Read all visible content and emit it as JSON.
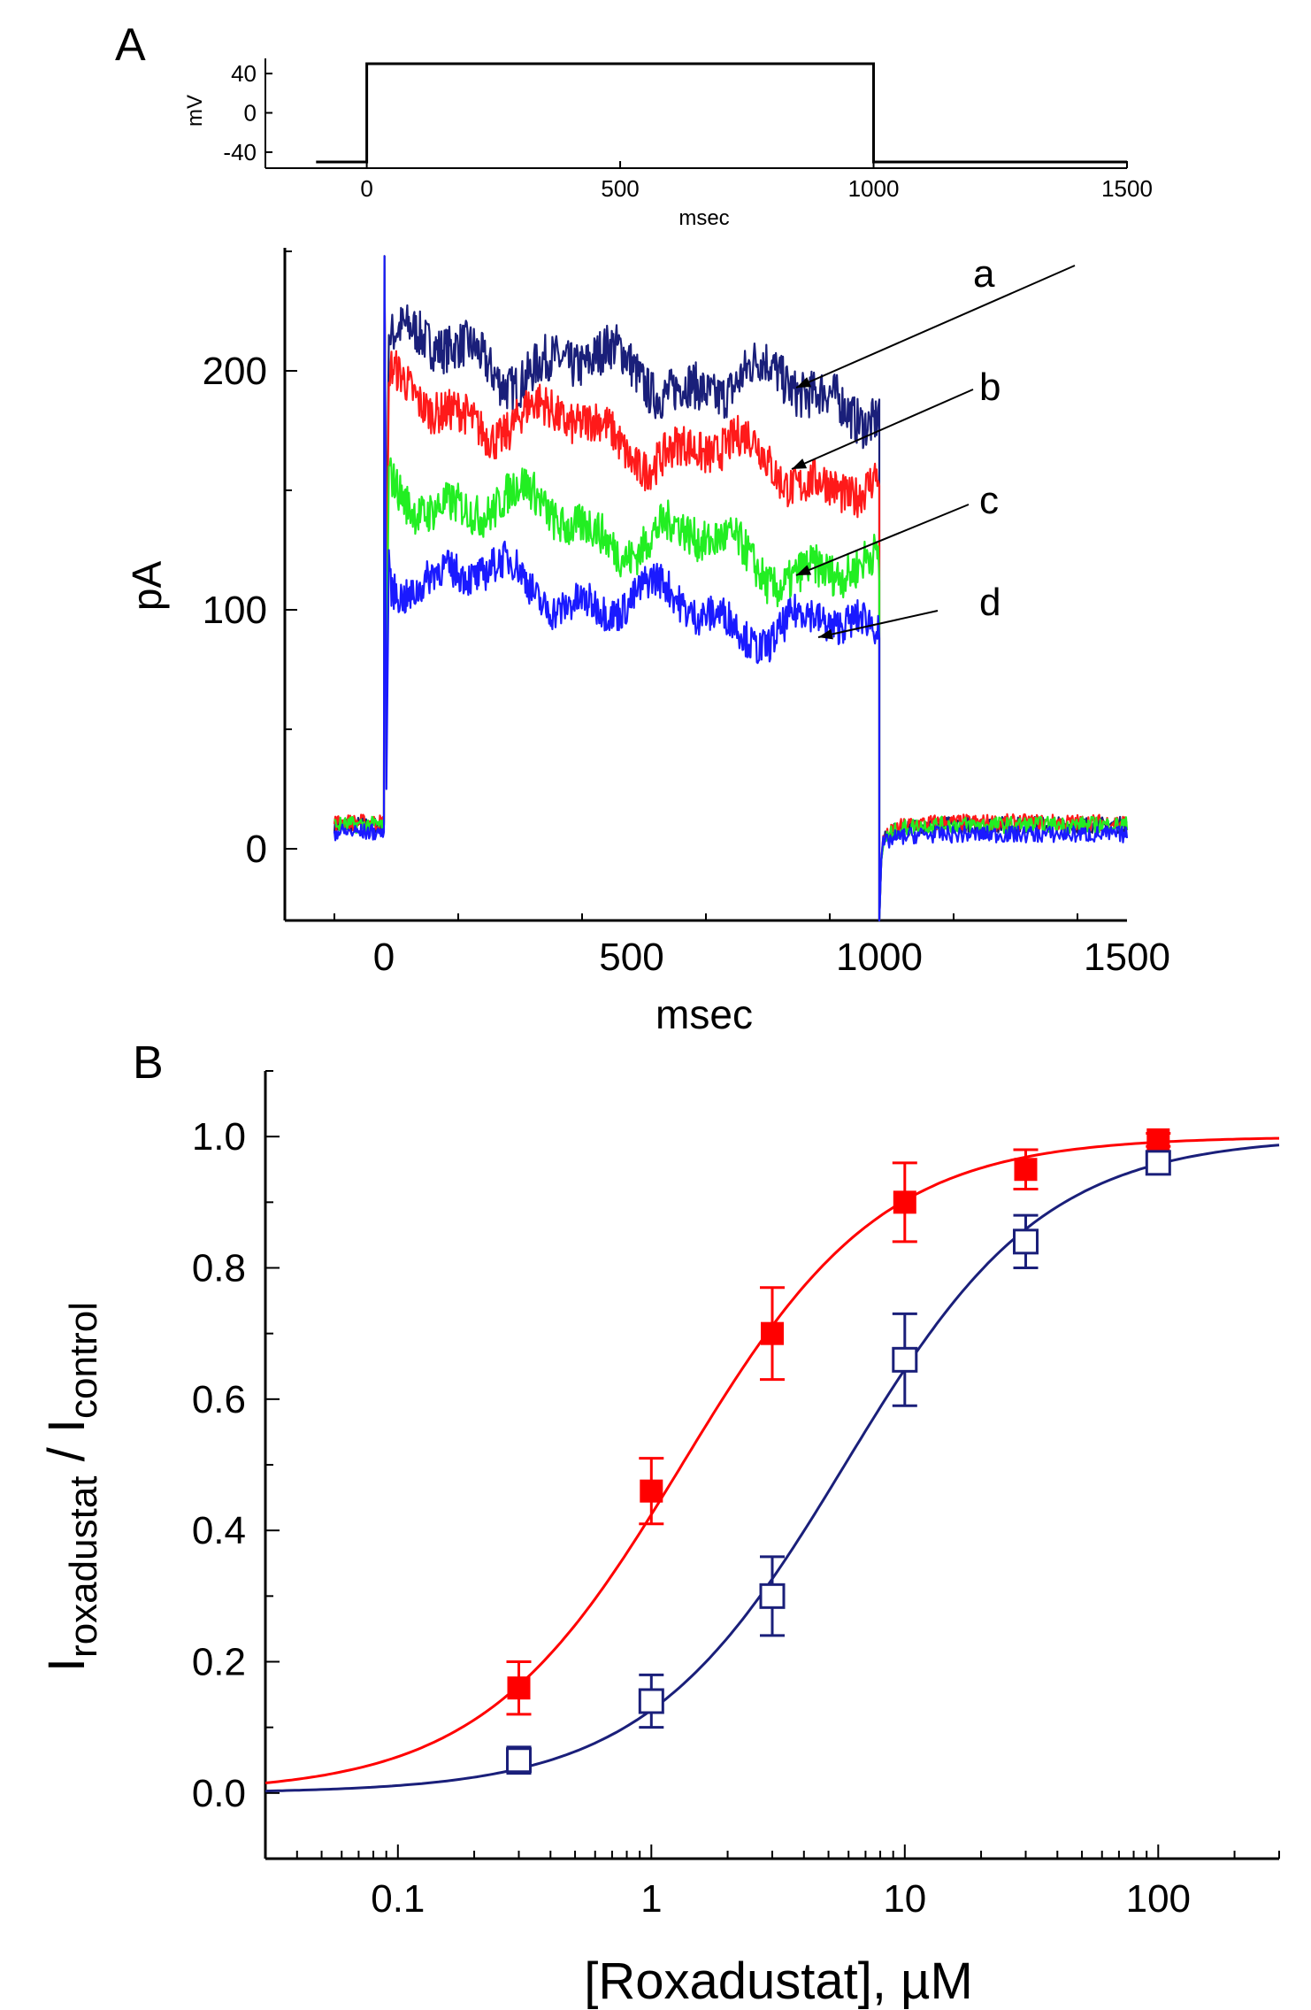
{
  "panels": {
    "a": {
      "letter": "A"
    },
    "b": {
      "letter": "B"
    }
  },
  "chart_data": [
    {
      "id": "voltage-protocol",
      "type": "line",
      "xlabel": "msec",
      "ylabel": "mV",
      "xlim": [
        -200,
        1500
      ],
      "ylim": [
        -50,
        50
      ],
      "xticks": [
        0,
        500,
        1000,
        1500
      ],
      "yticks": [
        40,
        0,
        -40
      ],
      "series": [
        {
          "name": "protocol",
          "color": "#000000",
          "x": [
            -100,
            0,
            0,
            1000,
            1000,
            1500
          ],
          "y": [
            -50,
            -50,
            50,
            50,
            -50,
            -50
          ]
        }
      ]
    },
    {
      "id": "current-traces",
      "type": "line",
      "xlabel": "msec",
      "ylabel": "pA",
      "xlim": [
        -200,
        1500
      ],
      "ylim": [
        -30,
        250
      ],
      "xticks": [
        0,
        500,
        1000,
        1500
      ],
      "yticks": [
        0,
        100,
        200
      ],
      "series": [
        {
          "name": "a",
          "color": "#1a1f7a",
          "peak": 215,
          "level_start": 210,
          "level_end": 188,
          "noise": 9,
          "baseline": 10,
          "tail": 10,
          "arrow_from": [
            1215,
            300
          ],
          "arrow_to": [
            900,
            438
          ]
        },
        {
          "name": "b",
          "color": "#ff1a1a",
          "peak": 195,
          "level_start": 190,
          "level_end": 152,
          "noise": 8,
          "baseline": 11,
          "tail": 11,
          "arrow_from": [
            1100,
            440
          ],
          "arrow_to": [
            895,
            530
          ]
        },
        {
          "name": "c",
          "color": "#22ee22",
          "peak": 160,
          "level_start": 152,
          "level_end": 112,
          "noise": 8,
          "baseline": 10,
          "tail": 10,
          "arrow_from": [
            1095,
            570
          ],
          "arrow_to": [
            900,
            650
          ]
        },
        {
          "name": "d",
          "color": "#1a1aff",
          "peak": 125,
          "level_start": 118,
          "level_end": 88,
          "noise": 7,
          "baseline": 7,
          "tail": 6,
          "arrow_from": [
            1060,
            690
          ],
          "arrow_to": [
            925,
            720
          ]
        }
      ]
    },
    {
      "id": "concentration-response",
      "type": "scatter",
      "xscale": "log",
      "xlabel": "[Roxadustat], µM",
      "ylabel_main": "I",
      "ylabel_sub1": "roxadustat",
      "ylabel_sep": " / I",
      "ylabel_sub2": "control",
      "xlim": [
        0.03,
        300
      ],
      "ylim": [
        -0.1,
        1.1
      ],
      "xticks": [
        0.1,
        1,
        10,
        100
      ],
      "xtick_labels": [
        "0.1",
        "1",
        "10",
        "100"
      ],
      "yticks": [
        0.0,
        0.2,
        0.4,
        0.6,
        0.8,
        1.0
      ],
      "ytick_labels": [
        "0.0",
        "0.2",
        "0.4",
        "0.6",
        "0.8",
        "1.0"
      ],
      "series": [
        {
          "name": "filled-red",
          "color": "#ff0000",
          "marker": "filled-square",
          "x": [
            0.3,
            1,
            3,
            10,
            30,
            100
          ],
          "y": [
            0.16,
            0.46,
            0.7,
            0.9,
            0.95,
            0.995
          ],
          "err": [
            0.04,
            0.05,
            0.07,
            0.06,
            0.03,
            0.01
          ],
          "fit_ic50": 1.32,
          "fit_hill": 1.1
        },
        {
          "name": "open-navy",
          "color": "#1a1f7a",
          "marker": "open-square",
          "x": [
            0.3,
            1,
            3,
            10,
            30,
            100
          ],
          "y": [
            0.05,
            0.14,
            0.3,
            0.66,
            0.84,
            0.96
          ],
          "err": [
            0.02,
            0.04,
            0.06,
            0.07,
            0.04,
            0.01
          ],
          "fit_ic50": 5.8,
          "fit_hill": 1.1
        }
      ]
    }
  ]
}
